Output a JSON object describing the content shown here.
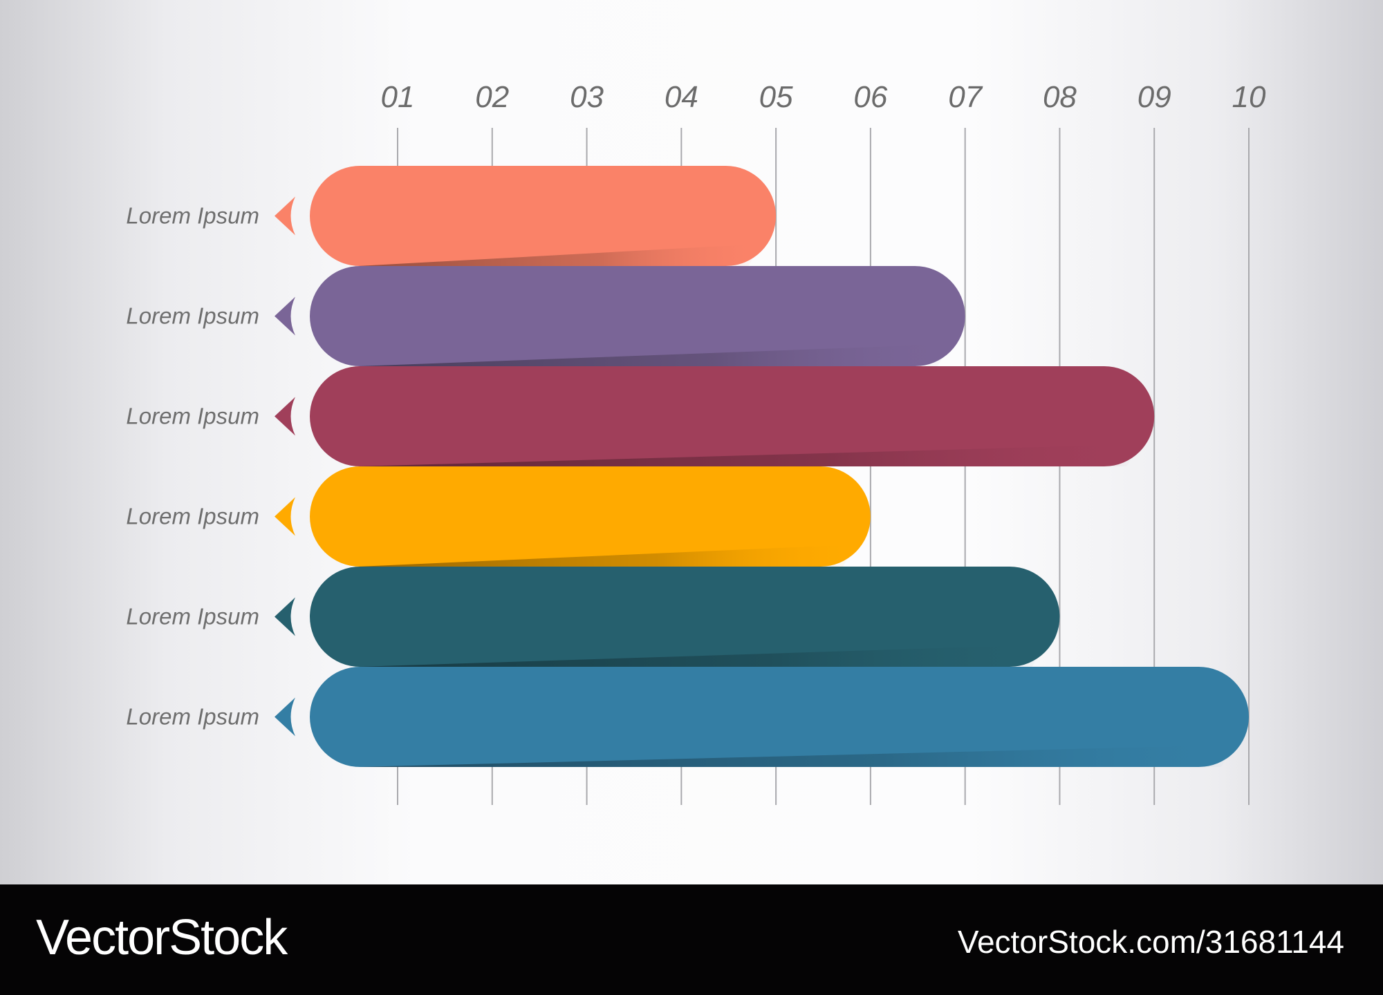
{
  "chart_data": {
    "type": "bar",
    "orientation": "horizontal",
    "categories": [
      "Lorem Ipsum",
      "Lorem Ipsum",
      "Lorem Ipsum",
      "Lorem Ipsum",
      "Lorem Ipsum",
      "Lorem Ipsum"
    ],
    "values": [
      5,
      7,
      9,
      6,
      8,
      10
    ],
    "colors": [
      "#fa8268",
      "#7a6597",
      "#a03f5a",
      "#ffaa00",
      "#26606e",
      "#347ea4"
    ],
    "x_tick_labels": [
      "01",
      "02",
      "03",
      "04",
      "05",
      "06",
      "07",
      "08",
      "09",
      "10"
    ],
    "xlim": [
      0,
      10
    ],
    "grid": "vertical",
    "title": "",
    "xlabel": "",
    "ylabel": ""
  },
  "footer": {
    "brand": "VectorStock",
    "url": "VectorStock.com/31681144"
  }
}
